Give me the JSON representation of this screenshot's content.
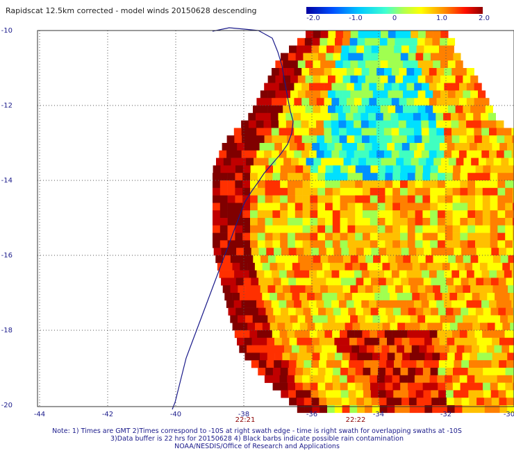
{
  "title": "Rapidscat 12.5km corrected - model winds 20150628 descending",
  "colorbar": {
    "ticks": [
      "-2.0",
      "-1.0",
      "0",
      "1.0",
      "2.0"
    ],
    "colors": [
      "#0000a0",
      "#0070ff",
      "#00e8ff",
      "#a0ff60",
      "#ffff00",
      "#ff9000",
      "#ff2000",
      "#a00000"
    ]
  },
  "axes": {
    "lon_ticks": [
      "-44",
      "-42",
      "-40",
      "-38",
      "-36",
      "-34",
      "-32",
      "-30"
    ],
    "lat_ticks": [
      "-10",
      "-12",
      "-14",
      "-16",
      "-18",
      "-20"
    ]
  },
  "times": [
    "22:21",
    "22:22"
  ],
  "notes": [
    "Note: 1) Times are GMT 2)Times correspond to -10S at right swath edge - time is right swath for overlapping swaths at -10S",
    "3)Data buffer is 22 hrs for 20150628 4) Black barbs indicate possible rain contamination",
    "NOAA/NESDIS/Office of Research and Applications"
  ],
  "coastline_color": "#1a1a8a"
}
